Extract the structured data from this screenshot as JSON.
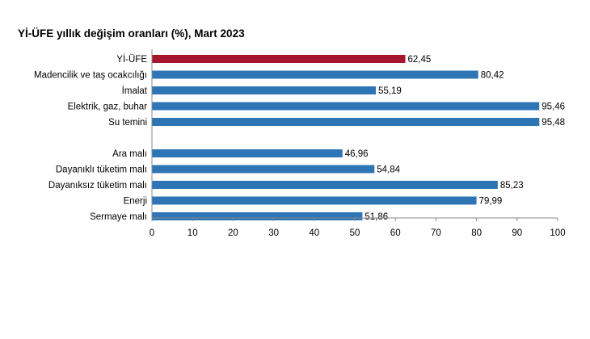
{
  "chart_data": {
    "type": "bar",
    "orientation": "horizontal",
    "title": "Yİ-ÜFE yıllık değişim oranları (%), Mart 2023",
    "categories": [
      "Yİ-ÜFE",
      "Madencilik ve taş ocakcılığı",
      "İmalat",
      "Elektrik, gaz, buhar",
      "Su temini",
      "",
      "Ara malı",
      "Dayanıklı tüketim malı",
      "Dayanıksız tüketim malı",
      "Enerji",
      "Sermaye malı"
    ],
    "values": [
      62.45,
      80.42,
      55.19,
      95.46,
      95.48,
      null,
      46.96,
      54.84,
      85.23,
      79.99,
      51.86
    ],
    "value_labels": [
      "62,45",
      "80,42",
      "55,19",
      "95,46",
      "95,48",
      "",
      "46,96",
      "54,84",
      "85,23",
      "79,99",
      "51,86"
    ],
    "highlight_index": 0,
    "xlim": [
      0,
      100
    ],
    "xticks": [
      0,
      10,
      20,
      30,
      40,
      50,
      60,
      70,
      80,
      90,
      100
    ],
    "grid": false,
    "legend": "none",
    "xlabel": "",
    "ylabel": "",
    "colors": {
      "bar": "#2e75b6",
      "highlight": "#a5152b",
      "axis": "#888888"
    }
  }
}
